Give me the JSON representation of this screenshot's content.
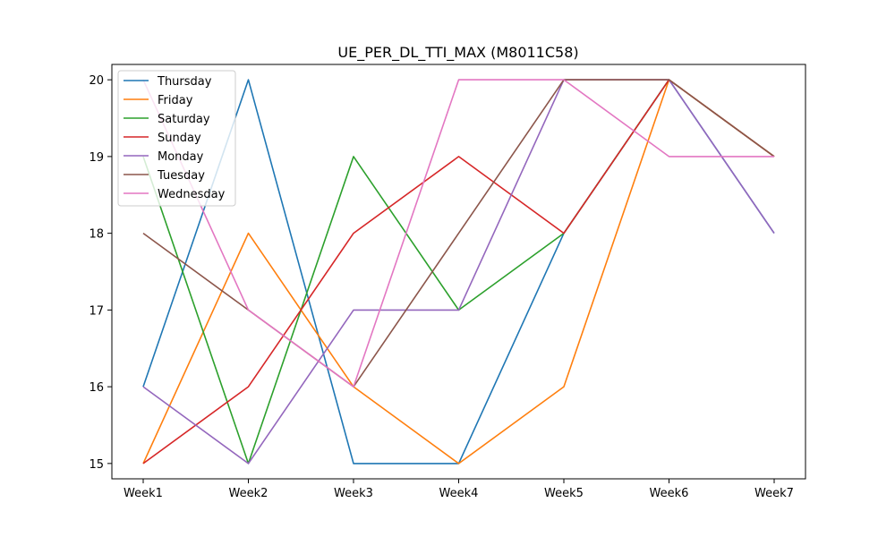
{
  "chart_data": {
    "type": "line",
    "title": "UE_PER_DL_TTI_MAX (M8011C58)",
    "xlabel": "",
    "ylabel": "",
    "categories": [
      "Week1",
      "Week2",
      "Week3",
      "Week4",
      "Week5",
      "Week6",
      "Week7"
    ],
    "yticks": [
      15,
      16,
      17,
      18,
      19,
      20
    ],
    "ylim": [
      14.8,
      20.2
    ],
    "grid": false,
    "legend_position": "top-left",
    "series": [
      {
        "name": "Thursday",
        "color": "#1f77b4",
        "values": [
          16,
          20,
          15,
          15,
          18,
          20,
          18
        ]
      },
      {
        "name": "Friday",
        "color": "#ff7f0e",
        "values": [
          15,
          18,
          16,
          15,
          16,
          20,
          19
        ]
      },
      {
        "name": "Saturday",
        "color": "#2ca02c",
        "values": [
          19,
          15,
          19,
          17,
          18,
          20,
          19
        ]
      },
      {
        "name": "Sunday",
        "color": "#d62728",
        "values": [
          15,
          16,
          18,
          19,
          18,
          20,
          19
        ]
      },
      {
        "name": "Monday",
        "color": "#9467bd",
        "values": [
          16,
          15,
          17,
          17,
          20,
          20,
          18
        ]
      },
      {
        "name": "Tuesday",
        "color": "#8c564b",
        "values": [
          18,
          17,
          16,
          18,
          20,
          20,
          19
        ]
      },
      {
        "name": "Wednesday",
        "color": "#e377c2",
        "values": [
          20,
          17,
          16,
          20,
          20,
          19,
          19
        ]
      }
    ]
  }
}
